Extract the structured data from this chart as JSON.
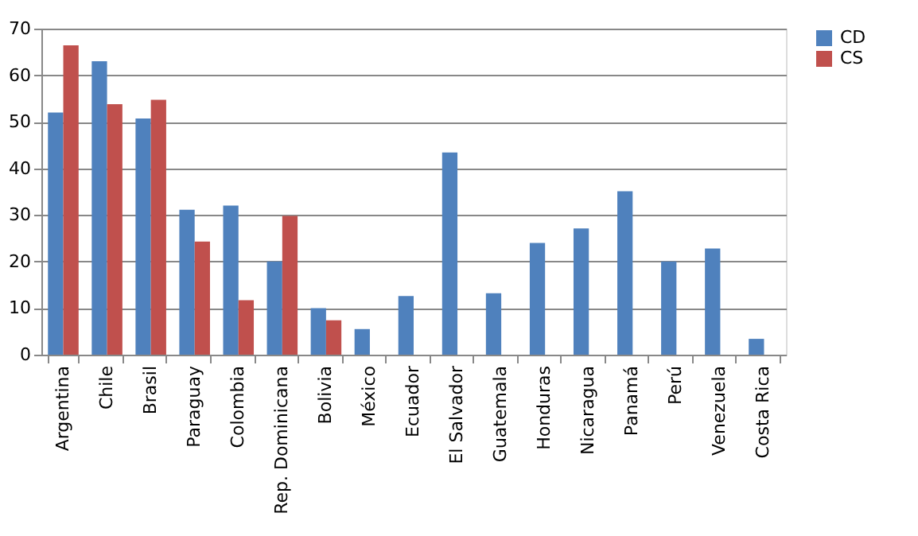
{
  "chart_data": {
    "type": "bar",
    "categories": [
      "Argentina",
      "Chile",
      "Brasil",
      "Paraguay",
      "Colombia",
      "Rep. Dominicana",
      "Bolivia",
      "México",
      "Ecuador",
      "El Salvador",
      "Guatemala",
      "Honduras",
      "Nicaragua",
      "Panamá",
      "Perú",
      "Venezuela",
      "Costa Rica"
    ],
    "series": [
      {
        "name": "CD",
        "color": "#4f81bd",
        "values": [
          52.0,
          63.0,
          50.7,
          31.1,
          32.0,
          20.0,
          10.0,
          5.5,
          12.6,
          43.4,
          13.2,
          24.0,
          27.1,
          35.1,
          20.0,
          22.8,
          3.4
        ]
      },
      {
        "name": "CS",
        "color": "#c0504d",
        "values": [
          66.4,
          53.8,
          54.7,
          24.3,
          11.7,
          29.8,
          7.4,
          null,
          null,
          null,
          null,
          null,
          null,
          null,
          null,
          null,
          null
        ]
      }
    ],
    "ylim": [
      0,
      70
    ],
    "yticks": [
      0,
      10,
      20,
      30,
      40,
      50,
      60,
      70
    ],
    "grid": "y",
    "legend": "right"
  }
}
